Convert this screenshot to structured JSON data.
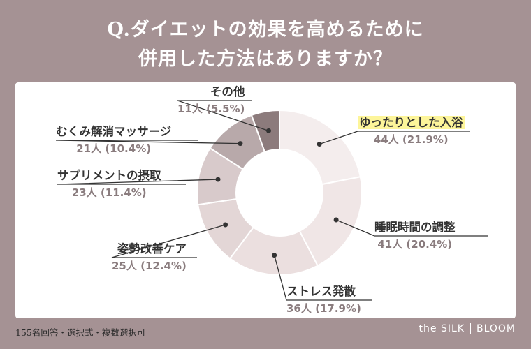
{
  "title": {
    "line1": "Q.ダイエットの効果を高めるために",
    "line2": "併用した方法はありますか？"
  },
  "footer": {
    "note": "155名回答・選択式・複数選択可",
    "brand_left": "the SILK",
    "brand_right": "BLOOM"
  },
  "chart_data": {
    "type": "pie",
    "donut": true,
    "title": "Q.ダイエットの効果を高めるために併用した方法はありますか？",
    "slices": [
      {
        "label": "ゆったりとした入浴",
        "count_label": "44人 (21.9%)",
        "value": 21.9,
        "color": "#f4eded",
        "highlight": true
      },
      {
        "label": "睡眠時間の調整",
        "count_label": "41人 (20.4%)",
        "value": 20.4,
        "color": "#f0e6e6"
      },
      {
        "label": "ストレス発散",
        "count_label": "36人 (17.9%)",
        "value": 17.9,
        "color": "#ebdfdf"
      },
      {
        "label": "姿勢改善ケア",
        "count_label": "25人 (12.4%)",
        "value": 12.4,
        "color": "#e3d6d6"
      },
      {
        "label": "サプリメントの摂取",
        "count_label": "23人 (11.4%)",
        "value": 11.4,
        "color": "#d8cacb"
      },
      {
        "label": "むくみ解消マッサージ",
        "count_label": "21人 (10.4%)",
        "value": 10.4,
        "color": "#b8a9aa"
      },
      {
        "label": "その他",
        "count_label": "11人 (5.5%)",
        "value": 5.5,
        "color": "#8c7b7c"
      }
    ]
  }
}
